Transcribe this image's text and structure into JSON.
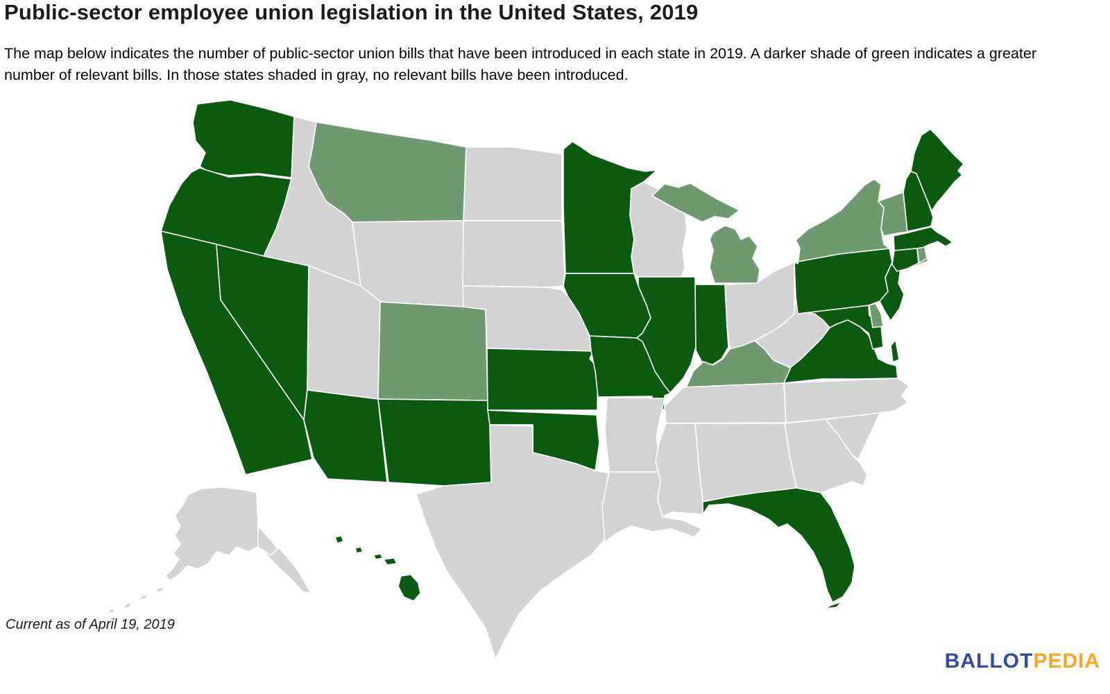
{
  "title": "Public-sector employee union legislation in the United States, 2019",
  "subtitle": "The map below indicates the number of public-sector union bills that have been introduced in each state in 2019. A darker shade of green indicates a greater number of relevant bills. In those states shaded in gray, no relevant bills have been introduced.",
  "note": "Current as of April 19, 2019",
  "logo": {
    "ballot": "BALLOT",
    "pedia": "PEDIA",
    "ballot_color": "#2f4da4",
    "pedia_color": "#f5a623"
  },
  "chart_data": {
    "type": "choropleth",
    "geography": "United States (50 states)",
    "metric": "Number of public-sector union bills introduced in each state in 2019",
    "background_color": "#ffffff",
    "border_color": "#ffffff",
    "classes": [
      {
        "id": "many",
        "label": "Greater number of relevant bills introduced (darker green)",
        "color": "#0a5a0f"
      },
      {
        "id": "fewer",
        "label": "Fewer relevant bills introduced (lighter green)",
        "color": "#6f9a70"
      },
      {
        "id": "none",
        "label": "No relevant bills introduced (gray)",
        "color": "#d3d3d3"
      }
    ],
    "states": {
      "WA": "many",
      "OR": "many",
      "CA": "many",
      "NV": "many",
      "AZ": "many",
      "NM": "many",
      "KS": "many",
      "OK": "many",
      "MN": "many",
      "IA": "many",
      "MO": "many",
      "IL": "many",
      "IN": "many",
      "PA": "many",
      "NJ": "many",
      "MD": "many",
      "VA": "many",
      "FL": "many",
      "MA": "many",
      "CT": "many",
      "NH": "many",
      "ME": "many",
      "HI": "many",
      "MT": "fewer",
      "CO": "fewer",
      "MI": "fewer",
      "NY": "fewer",
      "VT": "fewer",
      "RI": "fewer",
      "DE": "fewer",
      "KY": "fewer",
      "ID": "none",
      "UT": "none",
      "WY": "none",
      "ND": "none",
      "SD": "none",
      "NE": "none",
      "TX": "none",
      "LA": "none",
      "AR": "none",
      "MS": "none",
      "AL": "none",
      "GA": "none",
      "SC": "none",
      "NC": "none",
      "TN": "none",
      "WV": "none",
      "OH": "none",
      "WI": "none",
      "AK": "none"
    }
  }
}
